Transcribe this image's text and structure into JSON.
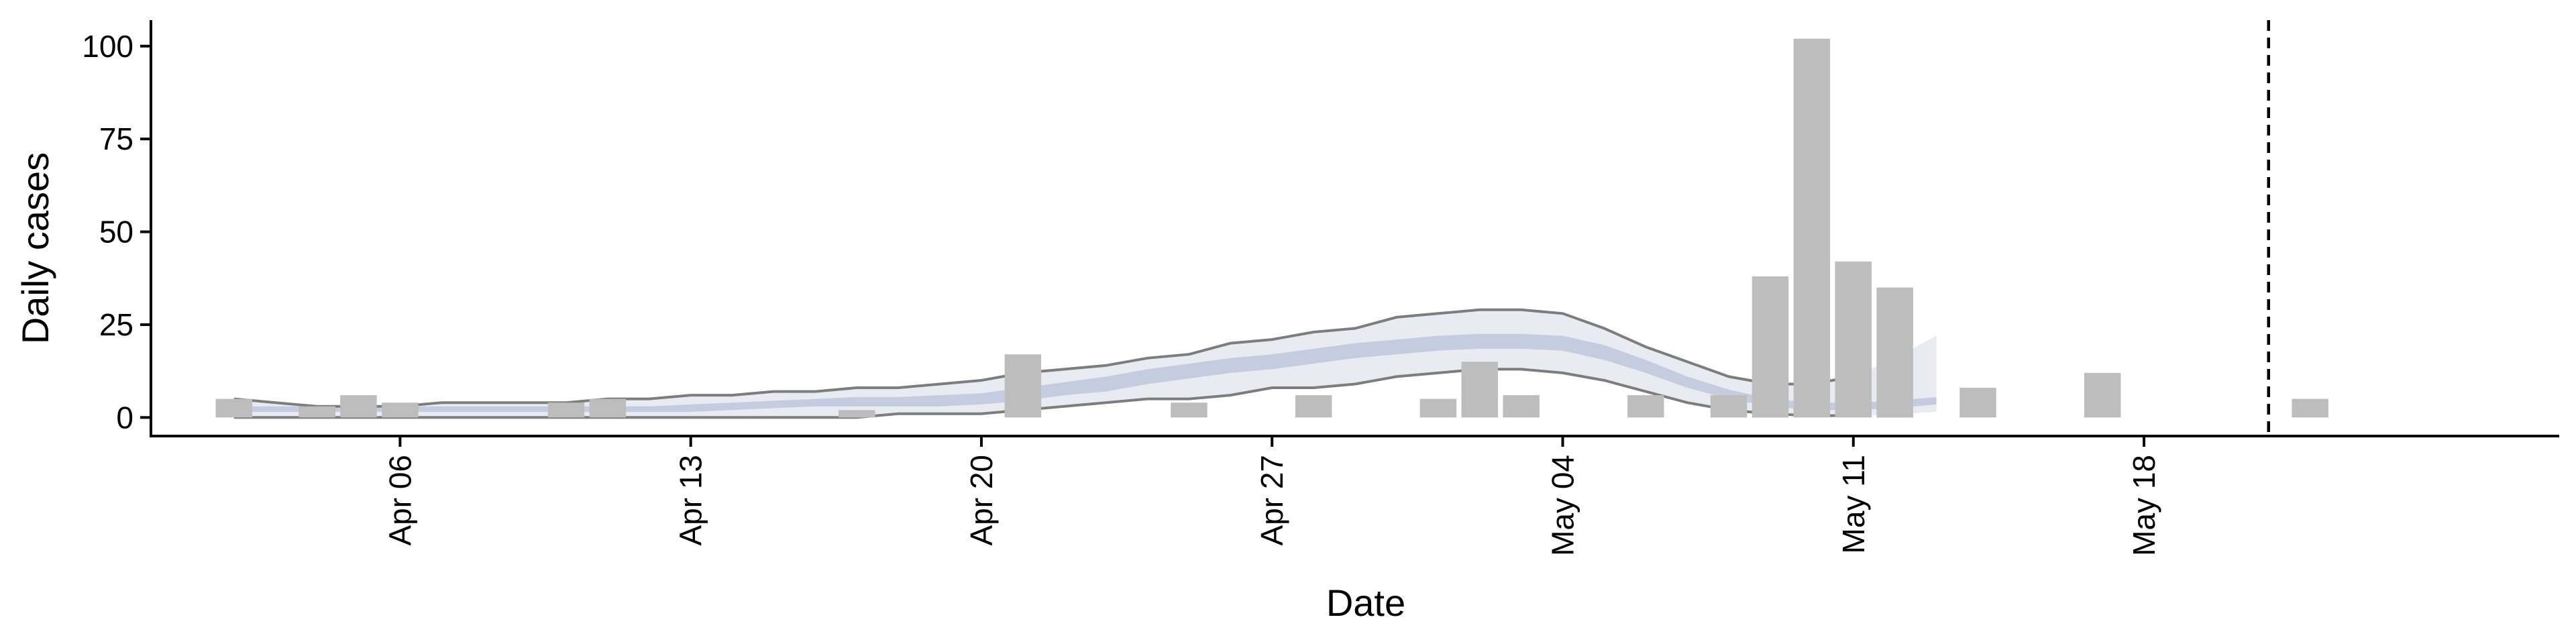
{
  "chart_data": {
    "type": "bar",
    "xlabel": "Date",
    "ylabel": "Daily cases",
    "ylim": [
      0,
      100
    ],
    "yticks": [
      "0",
      "25",
      "50",
      "75",
      "100"
    ],
    "x_tick_labels": [
      "Apr 06",
      "Apr 13",
      "Apr 20",
      "Apr 27",
      "May 04",
      "May 11",
      "May 18"
    ],
    "x_tick_dates": [
      "2020-04-06",
      "2020-04-13",
      "2020-04-20",
      "2020-04-27",
      "2020-05-04",
      "2020-05-11",
      "2020-05-18"
    ],
    "xlim": [
      "2020-03-31",
      "2020-05-28"
    ],
    "grid": false,
    "legend": "none",
    "bars": {
      "color": "#bdbdbd",
      "dates": [
        "2020-04-02",
        "2020-04-03",
        "2020-04-04",
        "2020-04-05",
        "2020-04-06",
        "2020-04-07",
        "2020-04-08",
        "2020-04-09",
        "2020-04-10",
        "2020-04-11",
        "2020-04-12",
        "2020-04-13",
        "2020-04-14",
        "2020-04-15",
        "2020-04-16",
        "2020-04-17",
        "2020-04-18",
        "2020-04-19",
        "2020-04-20",
        "2020-04-21",
        "2020-04-22",
        "2020-04-23",
        "2020-04-24",
        "2020-04-25",
        "2020-04-26",
        "2020-04-27",
        "2020-04-28",
        "2020-04-29",
        "2020-04-30",
        "2020-05-01",
        "2020-05-02",
        "2020-05-03",
        "2020-05-04",
        "2020-05-05",
        "2020-05-06",
        "2020-05-07",
        "2020-05-08",
        "2020-05-09",
        "2020-05-10",
        "2020-05-11",
        "2020-05-12",
        "2020-05-13",
        "2020-05-14",
        "2020-05-15",
        "2020-05-16",
        "2020-05-17",
        "2020-05-18",
        "2020-05-19",
        "2020-05-20",
        "2020-05-21",
        "2020-05-22"
      ],
      "values": [
        5,
        0,
        3,
        6,
        4,
        0,
        0,
        0,
        4,
        5,
        0,
        0,
        0,
        0,
        0,
        2,
        0,
        0,
        0,
        17,
        0,
        0,
        0,
        4,
        0,
        0,
        6,
        0,
        0,
        5,
        15,
        6,
        0,
        0,
        6,
        0,
        6,
        38,
        102,
        42,
        35,
        0,
        8,
        0,
        0,
        12,
        0,
        0,
        0,
        0,
        5
      ]
    },
    "band_dates": [
      "2020-04-02",
      "2020-04-03",
      "2020-04-04",
      "2020-04-05",
      "2020-04-06",
      "2020-04-07",
      "2020-04-08",
      "2020-04-09",
      "2020-04-10",
      "2020-04-11",
      "2020-04-12",
      "2020-04-13",
      "2020-04-14",
      "2020-04-15",
      "2020-04-16",
      "2020-04-17",
      "2020-04-18",
      "2020-04-19",
      "2020-04-20",
      "2020-04-21",
      "2020-04-22",
      "2020-04-23",
      "2020-04-24",
      "2020-04-25",
      "2020-04-26",
      "2020-04-27",
      "2020-04-28",
      "2020-04-29",
      "2020-04-30",
      "2020-05-01",
      "2020-05-02",
      "2020-05-03",
      "2020-05-04",
      "2020-05-05",
      "2020-05-06",
      "2020-05-07",
      "2020-05-08",
      "2020-05-09",
      "2020-05-10",
      "2020-05-11",
      "2020-05-12",
      "2020-05-13"
    ],
    "outer_band": {
      "color": "#e4e7ef",
      "lower": [
        0,
        0,
        0,
        0,
        0,
        0,
        0,
        0,
        0,
        0,
        0,
        0,
        0,
        0,
        0,
        0,
        1,
        1,
        1,
        2,
        3,
        4,
        5,
        5,
        6,
        8,
        8,
        9,
        11,
        12,
        13,
        13,
        12,
        10,
        7,
        4,
        2,
        1,
        0.5,
        0.5,
        0.8,
        1.5
      ],
      "upper": [
        5,
        4,
        3,
        3,
        3,
        4,
        4,
        4,
        4,
        5,
        5,
        6,
        6,
        7,
        7,
        8,
        8,
        9,
        10,
        12,
        13,
        14,
        16,
        17,
        20,
        21,
        23,
        24,
        27,
        28,
        29,
        29,
        28,
        24,
        19,
        15,
        11,
        9,
        9,
        11,
        16,
        22
      ]
    },
    "inner_band": {
      "color": "#c4cadd",
      "lower": [
        1.5,
        1.5,
        1.5,
        1.5,
        1.5,
        1.5,
        1.5,
        1.5,
        1.5,
        1.5,
        1.5,
        1.5,
        2,
        2.5,
        3,
        3,
        3,
        3,
        3.5,
        4.5,
        6,
        7,
        9,
        10.5,
        12,
        13,
        14.5,
        16,
        17,
        18,
        18.5,
        18.5,
        18,
        15.5,
        12,
        8,
        5,
        3,
        2,
        2,
        2.5,
        3.5
      ],
      "upper": [
        3,
        3,
        3,
        3,
        3,
        3,
        3,
        3,
        3,
        3,
        3,
        3.5,
        4,
        4.5,
        5,
        5.5,
        5.5,
        6,
        6.5,
        8,
        9.5,
        11,
        13,
        14.5,
        16,
        17,
        18.5,
        20,
        21,
        22,
        22.5,
        22.5,
        22,
        19.5,
        15.5,
        11,
        7.5,
        5,
        4,
        4,
        4.5,
        5.5
      ]
    },
    "outline_dates": [
      "2020-04-02",
      "2020-04-03",
      "2020-04-04",
      "2020-04-05",
      "2020-04-06",
      "2020-04-07",
      "2020-04-08",
      "2020-04-09",
      "2020-04-10",
      "2020-04-11",
      "2020-04-12",
      "2020-04-13",
      "2020-04-14",
      "2020-04-15",
      "2020-04-16",
      "2020-04-17",
      "2020-04-18",
      "2020-04-19",
      "2020-04-20",
      "2020-04-21",
      "2020-04-22",
      "2020-04-23",
      "2020-04-24",
      "2020-04-25",
      "2020-04-26",
      "2020-04-27",
      "2020-04-28",
      "2020-04-29",
      "2020-04-30",
      "2020-05-01",
      "2020-05-02",
      "2020-05-03",
      "2020-05-04",
      "2020-05-05",
      "2020-05-06",
      "2020-05-07",
      "2020-05-08",
      "2020-05-09",
      "2020-05-10",
      "2020-05-11"
    ],
    "outline_color": "#7d7d7d",
    "vline_date": "2020-05-21"
  }
}
